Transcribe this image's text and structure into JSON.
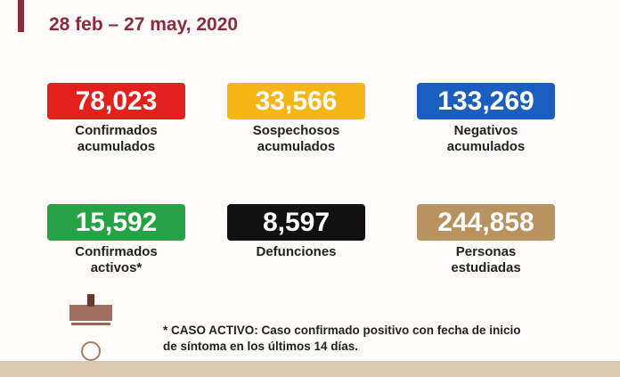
{
  "header": {
    "title": "28 feb – 27 may, 2020"
  },
  "cards": [
    {
      "value": "78,023",
      "label": [
        "Confirmados",
        "acumulados"
      ]
    },
    {
      "value": "33,566",
      "label": [
        "Sospechosos",
        "acumulados"
      ]
    },
    {
      "value": "133,269",
      "label": [
        "Negativos",
        "acumulados"
      ]
    },
    {
      "value": "15,592",
      "label": [
        "Confirmados",
        "activos*"
      ]
    },
    {
      "value": "8,597",
      "label": [
        "Defunciones"
      ]
    },
    {
      "value": "244,858",
      "label": [
        "Personas",
        "estudiadas"
      ]
    }
  ],
  "footnote": [
    "* CASO ACTIVO: Caso confirmado positivo con fecha de inicio",
    "de síntoma en los últimos 14 días."
  ]
}
